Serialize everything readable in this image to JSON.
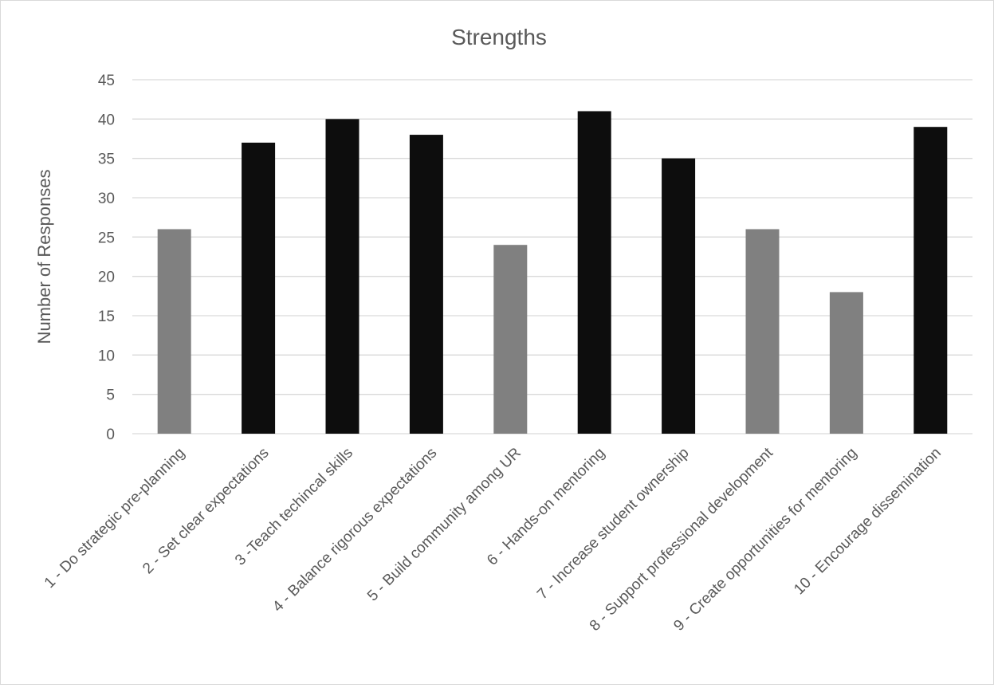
{
  "chart_data": {
    "type": "bar",
    "title": "Strengths",
    "xlabel": "",
    "ylabel": "Number of Responses",
    "ylim": [
      0,
      45
    ],
    "ytick_step": 5,
    "yticks": [
      "0",
      "5",
      "10",
      "15",
      "20",
      "25",
      "30",
      "35",
      "40",
      "45"
    ],
    "grid": true,
    "legend": "none",
    "colors": {
      "black_bar": "#0d0d0d",
      "gray_bar": "#808080",
      "grid": "#d9d9d9",
      "text": "#595959"
    },
    "categories": [
      "1 - Do strategic pre-planning",
      "2 - Set clear expectations",
      "3 -Teach techincal skills",
      "4 - Balance rigorous expectations",
      "5 - Build community among UR",
      "6 - Hands-on mentoring",
      "7 - Increase student ownership",
      "8 - Support professional development",
      "9 - Create opportunities for mentoring",
      "10 - Encourage dissemination"
    ],
    "values": [
      26,
      37,
      40,
      38,
      24,
      41,
      35,
      26,
      18,
      39
    ],
    "bar_colors": [
      "gray",
      "black",
      "black",
      "black",
      "gray",
      "black",
      "black",
      "gray",
      "gray",
      "black"
    ]
  }
}
